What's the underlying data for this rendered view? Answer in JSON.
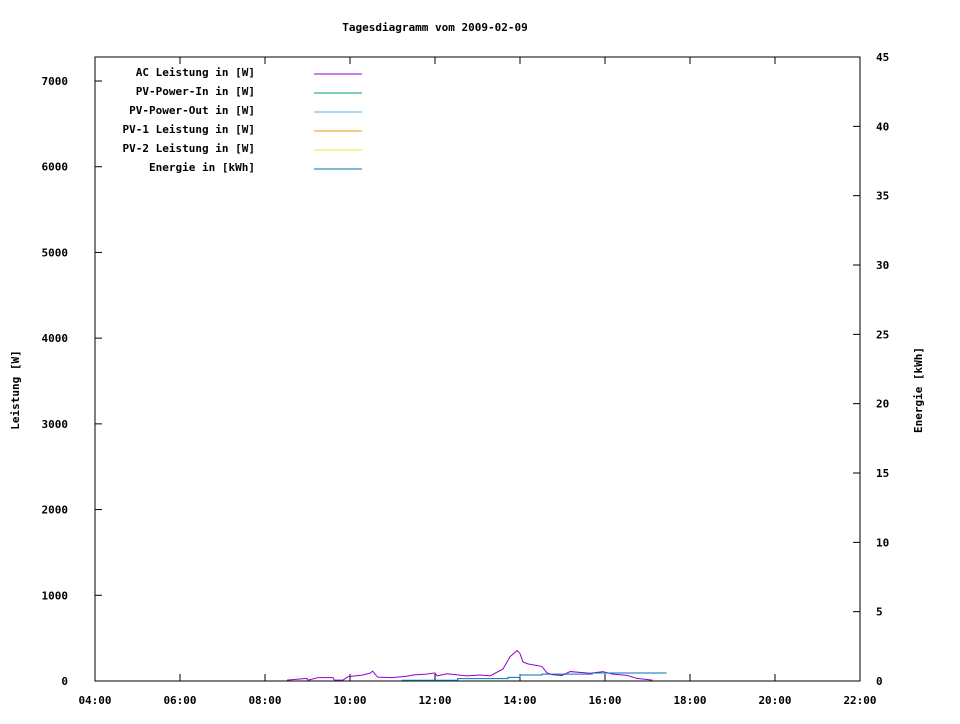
{
  "chart_data": {
    "type": "line",
    "title": "Tagesdiagramm vom 2009-02-09",
    "xlabel": "",
    "ylabel": "Leistung [W]",
    "y2label": "Energie [kWh]",
    "xlim": [
      "04:00",
      "22:00"
    ],
    "ylim": [
      0,
      7280
    ],
    "y2lim": [
      0,
      45
    ],
    "x_ticks": [
      "04:00",
      "06:00",
      "08:00",
      "10:00",
      "12:00",
      "14:00",
      "16:00",
      "18:00",
      "20:00",
      "22:00"
    ],
    "y_ticks": [
      0,
      1000,
      2000,
      3000,
      4000,
      5000,
      6000,
      7000
    ],
    "y2_ticks": [
      0,
      5,
      10,
      15,
      20,
      25,
      30,
      35,
      40,
      45
    ],
    "grid": false,
    "legend_placement": "top-left",
    "series": [
      {
        "name": "AC Leistung in [W]",
        "axis": "y",
        "color": "#9400d3",
        "x": [
          "08:31",
          "08:59",
          "09:01",
          "09:15",
          "09:36",
          "09:38",
          "09:50",
          "09:57",
          "10:18",
          "10:28",
          "10:32",
          "10:39",
          "10:59",
          "11:20",
          "11:29",
          "11:48",
          "12:00",
          "12:03",
          "12:17",
          "12:45",
          "13:03",
          "13:18",
          "13:36",
          "13:46",
          "13:56",
          "14:00",
          "14:04",
          "14:11",
          "14:31",
          "14:38",
          "14:45",
          "14:59",
          "15:11",
          "15:39",
          "15:57",
          "16:11",
          "16:31",
          "16:45",
          "17:07"
        ],
        "y": [
          10,
          30,
          10,
          40,
          40,
          10,
          10,
          50,
          70,
          90,
          115,
          45,
          40,
          55,
          70,
          80,
          95,
          60,
          85,
          60,
          70,
          60,
          140,
          285,
          355,
          320,
          225,
          200,
          170,
          95,
          75,
          65,
          110,
          90,
          110,
          80,
          65,
          30,
          10
        ]
      },
      {
        "name": "PV-Power-In in [W]",
        "axis": "y",
        "color": "#009e73",
        "x": [],
        "y": []
      },
      {
        "name": "PV-Power-Out in [W]",
        "axis": "y",
        "color": "#56b4e9",
        "x": [],
        "y": []
      },
      {
        "name": "PV-1 Leistung in [W]",
        "axis": "y",
        "color": "#e69f00",
        "x": [],
        "y": []
      },
      {
        "name": "PV-2 Leistung in [W]",
        "axis": "y",
        "color": "#f0e442",
        "x": [],
        "y": []
      },
      {
        "name": "Energie in [kWh]",
        "axis": "y2",
        "color": "#0072b2",
        "step": true,
        "x": [
          "11:13",
          "12:32",
          "13:43",
          "14:00",
          "14:31",
          "15:42",
          "17:27"
        ],
        "y": [
          0.05,
          0.17,
          0.26,
          0.43,
          0.5,
          0.58,
          0.58
        ]
      }
    ]
  }
}
